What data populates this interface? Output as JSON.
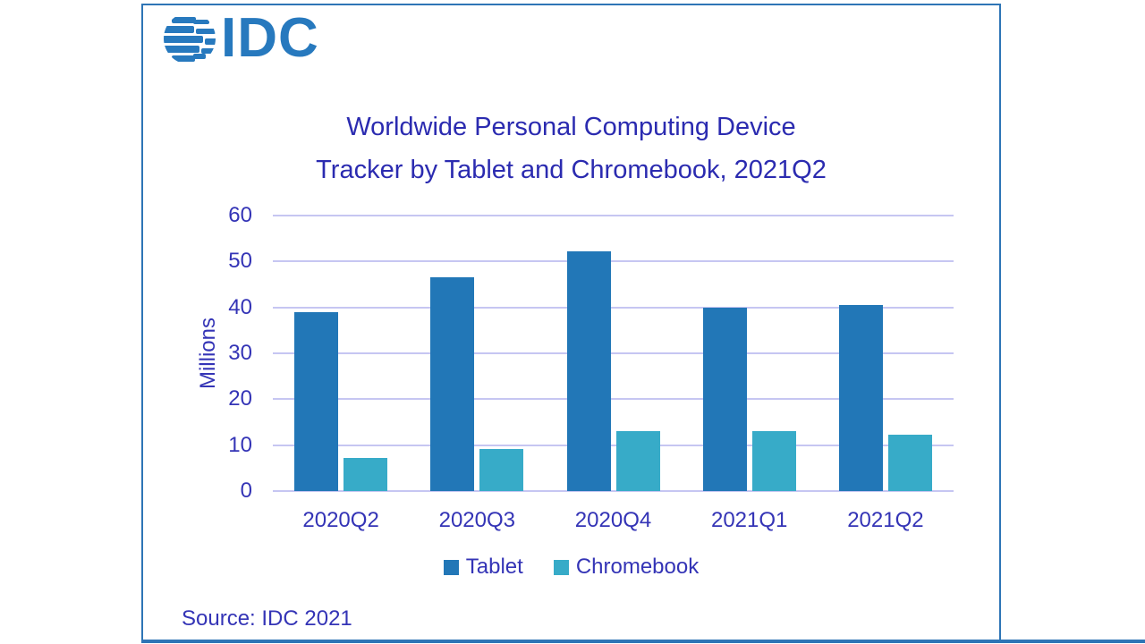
{
  "frame": {
    "border_color": "#2E75B6"
  },
  "logo": {
    "text": "IDC",
    "color": "#2779BE",
    "icon": "idc-globe-icon"
  },
  "title": {
    "line1": "Worldwide Personal Computing Device",
    "line2": "Tracker by Tablet and Chromebook, 2021Q2"
  },
  "source": {
    "text": "Source: IDC 2021"
  },
  "chart_data": {
    "type": "bar",
    "title": "Worldwide Personal Computing Device Tracker by Tablet and Chromebook, 2021Q2",
    "categories": [
      "2020Q2",
      "2020Q3",
      "2020Q4",
      "2021Q1",
      "2021Q2"
    ],
    "series": [
      {
        "name": "Tablet",
        "color": "#2277B7",
        "values": [
          38.9,
          46.6,
          52.2,
          40.0,
          40.5
        ]
      },
      {
        "name": "Chromebook",
        "color": "#37ABC8",
        "values": [
          7.3,
          9.2,
          13.1,
          13.1,
          12.3
        ]
      }
    ],
    "xlabel": "",
    "ylabel": "Millions",
    "ylim": [
      0,
      60
    ],
    "yticks": [
      0,
      10,
      20,
      30,
      40,
      50,
      60
    ],
    "grid": true,
    "gridline_color": "#C6C6F2",
    "legend_position": "bottom",
    "text_color": "#3434B6"
  }
}
